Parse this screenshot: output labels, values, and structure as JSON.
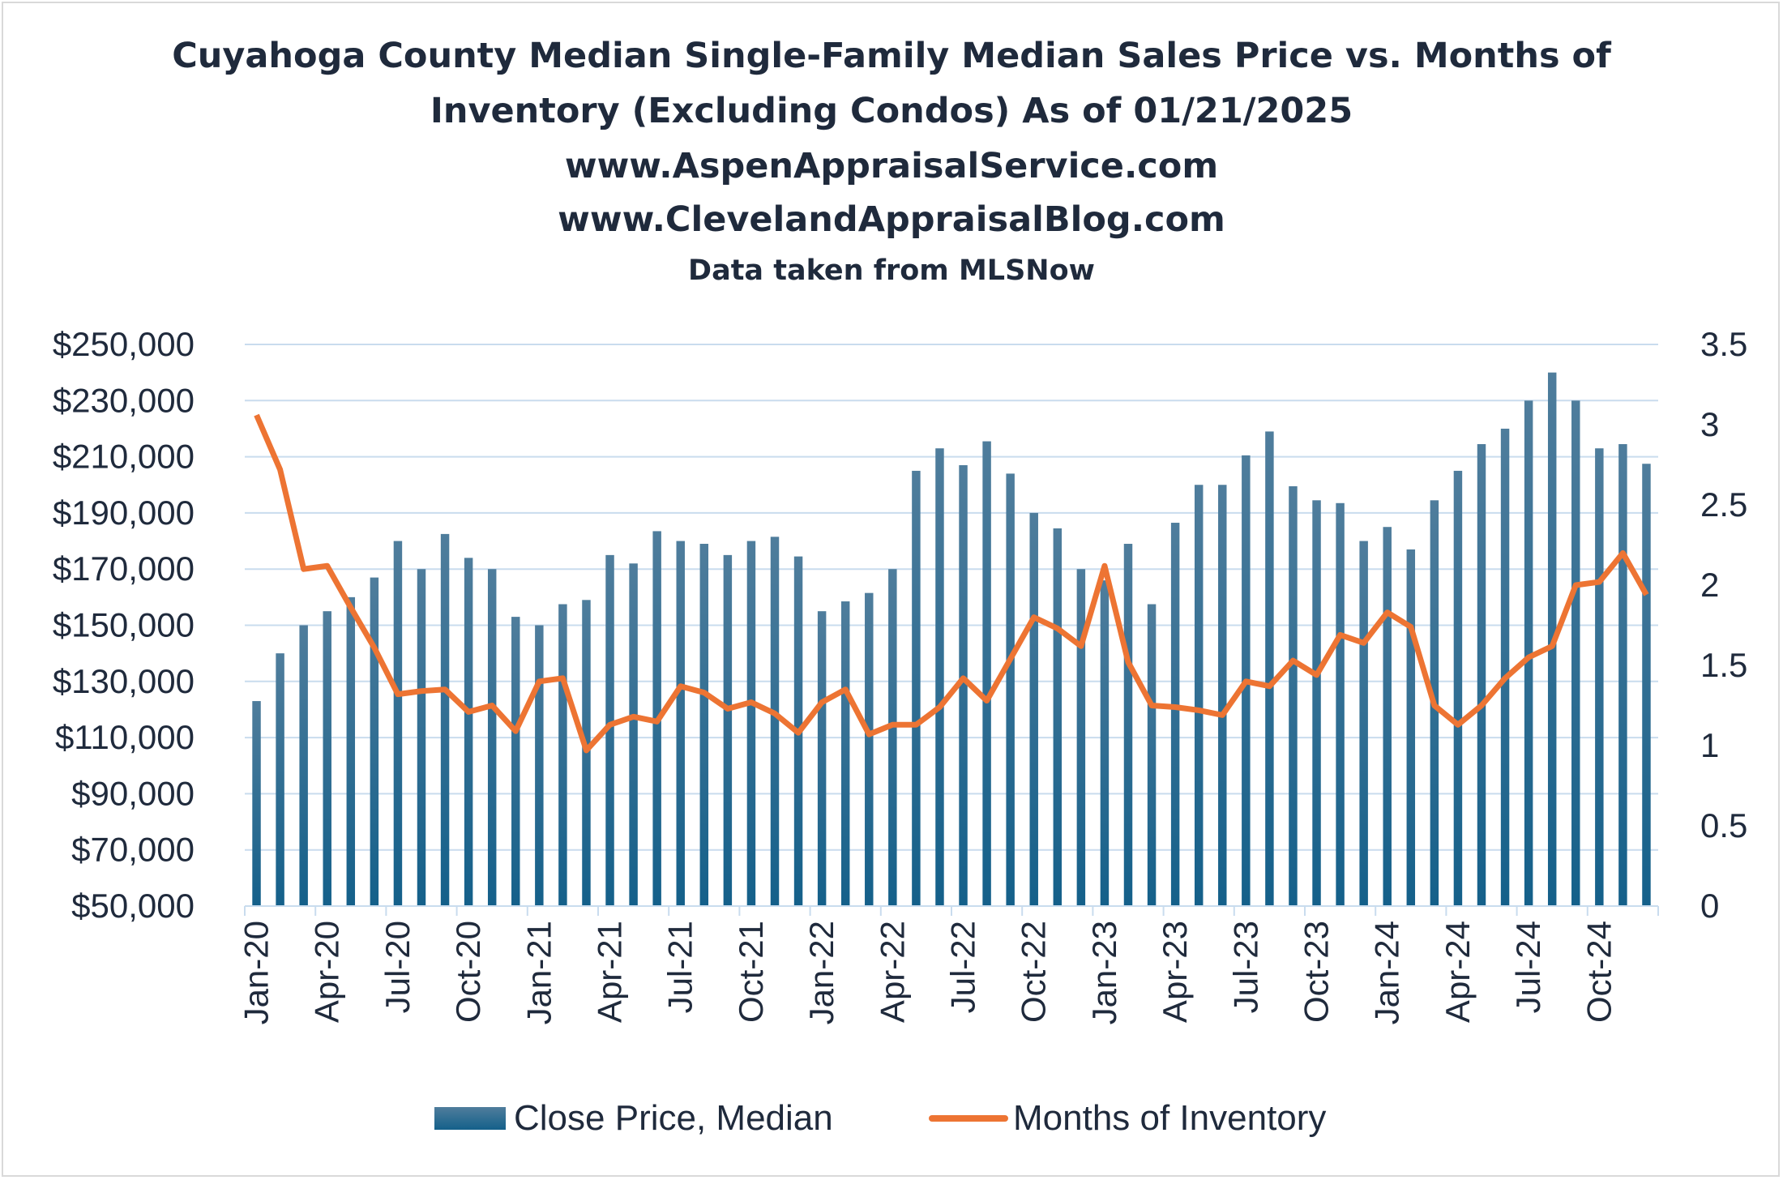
{
  "chart_data": {
    "type": "bar+line",
    "title": [
      "Cuyahoga County Median Single-Family Median Sales Price vs. Months of",
      "Inventory (Excluding Condos) As of 01/21/2025",
      "www.AspenAppraisalService.com",
      "www.ClevelandAppraisalBlog.com"
    ],
    "subtitle": "Data taken from MLSNow",
    "x": [
      "Jan-20",
      "Feb-20",
      "Mar-20",
      "Apr-20",
      "May-20",
      "Jun-20",
      "Jul-20",
      "Aug-20",
      "Sep-20",
      "Oct-20",
      "Nov-20",
      "Dec-20",
      "Jan-21",
      "Feb-21",
      "Mar-21",
      "Apr-21",
      "May-21",
      "Jun-21",
      "Jul-21",
      "Aug-21",
      "Sep-21",
      "Oct-21",
      "Nov-21",
      "Dec-21",
      "Jan-22",
      "Feb-22",
      "Mar-22",
      "Apr-22",
      "May-22",
      "Jun-22",
      "Jul-22",
      "Aug-22",
      "Sep-22",
      "Oct-22",
      "Nov-22",
      "Dec-22",
      "Jan-23",
      "Feb-23",
      "Mar-23",
      "Apr-23",
      "May-23",
      "Jun-23",
      "Jul-23",
      "Aug-23",
      "Sep-23",
      "Oct-23",
      "Nov-23",
      "Dec-23",
      "Jan-24",
      "Feb-24",
      "Mar-24",
      "Apr-24",
      "May-24",
      "Jun-24",
      "Jul-24",
      "Aug-24",
      "Sep-24",
      "Oct-24",
      "Nov-24",
      "Dec-24"
    ],
    "x_tick_labels": [
      "Jan-20",
      "Apr-20",
      "Jul-20",
      "Oct-20",
      "Jan-21",
      "Apr-21",
      "Jul-21",
      "Oct-21",
      "Jan-22",
      "Apr-22",
      "Jul-22",
      "Oct-22",
      "Jan-23",
      "Apr-23",
      "Jul-23",
      "Oct-23",
      "Jan-24",
      "Apr-24",
      "Jul-24",
      "Oct-24"
    ],
    "series": [
      {
        "name": "Close Price, Median",
        "type": "bar",
        "axis": "left",
        "color": "#1f5f86",
        "values": [
          123000,
          140000,
          150000,
          155000,
          160000,
          167000,
          180000,
          170000,
          182500,
          174000,
          170000,
          153000,
          150000,
          157500,
          159000,
          175000,
          172000,
          183500,
          180000,
          179000,
          175000,
          180000,
          181500,
          174500,
          155000,
          158500,
          161500,
          170000,
          205000,
          213000,
          207000,
          215500,
          204000,
          190000,
          184500,
          170000,
          166000,
          179000,
          157500,
          186500,
          200000,
          200000,
          210500,
          219000,
          199500,
          194500,
          193500,
          180000,
          185000,
          177000,
          194500,
          205000,
          214500,
          220000,
          230000,
          240000,
          230000,
          213000,
          214500,
          207500
        ]
      },
      {
        "name": "Months of Inventory",
        "type": "line",
        "axis": "right",
        "color": "#ed7433",
        "values": [
          3.06,
          2.72,
          2.1,
          2.12,
          1.86,
          1.61,
          1.32,
          1.34,
          1.35,
          1.21,
          1.25,
          1.09,
          1.4,
          1.42,
          0.97,
          1.13,
          1.18,
          1.15,
          1.37,
          1.33,
          1.23,
          1.27,
          1.2,
          1.08,
          1.27,
          1.35,
          1.07,
          1.13,
          1.13,
          1.24,
          1.42,
          1.28,
          1.54,
          1.8,
          1.73,
          1.62,
          2.12,
          1.52,
          1.25,
          1.24,
          1.22,
          1.19,
          1.4,
          1.37,
          1.53,
          1.44,
          1.69,
          1.64,
          1.83,
          1.74,
          1.25,
          1.13,
          1.25,
          1.42,
          1.55,
          1.62,
          2.0,
          2.02,
          2.2,
          1.94
        ]
      }
    ],
    "y_left": {
      "range": [
        50000,
        250000
      ],
      "ticks": [
        "$50,000",
        "$70,000",
        "$90,000",
        "$110,000",
        "$130,000",
        "$150,000",
        "$170,000",
        "$190,000",
        "$210,000",
        "$230,000",
        "$250,000"
      ]
    },
    "y_right": {
      "range": [
        0,
        3.5
      ],
      "ticks": [
        "0",
        "0.5",
        "1",
        "1.5",
        "2",
        "2.5",
        "3",
        "3.5"
      ]
    },
    "grid": true,
    "legend": "bottom",
    "gridline_color": "#c9dcee"
  }
}
